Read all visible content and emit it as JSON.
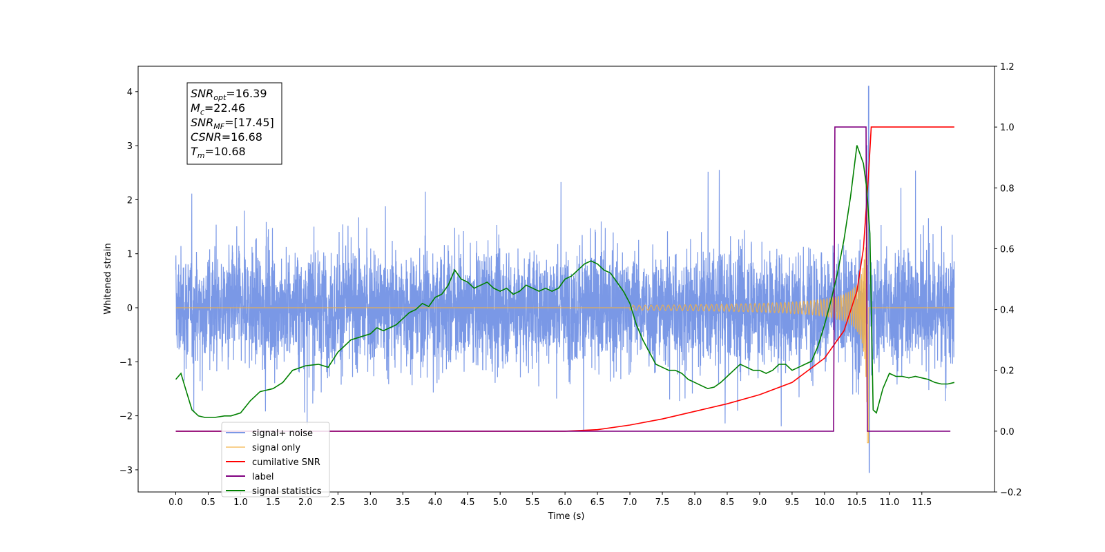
{
  "chart_data": {
    "type": "line",
    "xlabel": "Time (s)",
    "ylabel": "Whitened strain",
    "xlim": [
      -0.58,
      12.62
    ],
    "ylim": [
      -3.41,
      4.47
    ],
    "y2lim": [
      -0.2,
      1.2
    ],
    "x_ticks": [
      "0.0",
      "0.5",
      "1.0",
      "1.5",
      "2.0",
      "2.5",
      "3.0",
      "3.5",
      "4.0",
      "4.5",
      "5.0",
      "5.5",
      "6.0",
      "6.5",
      "7.0",
      "7.5",
      "8.0",
      "8.5",
      "9.0",
      "9.5",
      "10.0",
      "10.5",
      "11.0",
      "11.5"
    ],
    "y_ticks": [
      "−3",
      "−2",
      "−1",
      "0",
      "1",
      "2",
      "3",
      "4"
    ],
    "y2_ticks": [
      "−0.2",
      "0.0",
      "0.2",
      "0.4",
      "0.6",
      "0.8",
      "1.0",
      "1.2"
    ],
    "annotation": {
      "lines": [
        {
          "base": "SNR",
          "sub": "opt",
          "value": "=16.39"
        },
        {
          "base": "M",
          "sub": "c",
          "value": "=22.46"
        },
        {
          "base": "SNR",
          "sub": "MF",
          "value": "=[17.45]"
        },
        {
          "base": "CSNR",
          "sub": "",
          "value": "=16.68"
        },
        {
          "base": "T",
          "sub": "m",
          "value": "=10.68"
        }
      ]
    },
    "legend_position": "lower-left",
    "series": [
      {
        "name": "signal+ noise",
        "color": "#6b8de3",
        "axis": "left",
        "description_values": {
          "x_range": [
            0.0,
            12.0
          ],
          "noise_sigma": 0.75,
          "max": 4.1,
          "min": -3.05
        }
      },
      {
        "name": "signal only",
        "color": "#f5b041",
        "axis": "left",
        "chirp": {
          "start": 7.0,
          "peak_time": 10.68,
          "peak_amplitude": 2.3,
          "min": -2.5
        }
      },
      {
        "name": "cumilative SNR",
        "color": "#ff0000",
        "axis": "right",
        "x": [
          0.0,
          5.5,
          6.0,
          6.5,
          7.0,
          7.5,
          8.0,
          8.5,
          9.0,
          9.5,
          10.0,
          10.3,
          10.5,
          10.6,
          10.68,
          10.72,
          12.0
        ],
        "y": [
          0.0,
          0.0,
          0.0,
          0.005,
          0.02,
          0.04,
          0.065,
          0.09,
          0.12,
          0.16,
          0.24,
          0.33,
          0.46,
          0.6,
          0.85,
          1.0,
          1.0
        ]
      },
      {
        "name": "label",
        "color": "#800080",
        "axis": "right",
        "x": [
          0.0,
          10.14,
          10.16,
          10.64,
          10.66,
          11.94
        ],
        "y": [
          0.0,
          0.0,
          1.0,
          1.0,
          0.0,
          0.0
        ]
      },
      {
        "name": "signal statistics",
        "color": "#008000",
        "axis": "right",
        "x": [
          0.0,
          0.08,
          0.15,
          0.25,
          0.35,
          0.45,
          0.6,
          0.75,
          0.85,
          1.0,
          1.15,
          1.3,
          1.5,
          1.65,
          1.8,
          2.0,
          2.2,
          2.35,
          2.5,
          2.6,
          2.7,
          2.85,
          3.0,
          3.1,
          3.2,
          3.3,
          3.4,
          3.5,
          3.6,
          3.7,
          3.8,
          3.9,
          4.0,
          4.1,
          4.2,
          4.3,
          4.4,
          4.5,
          4.6,
          4.7,
          4.8,
          4.9,
          5.0,
          5.1,
          5.2,
          5.3,
          5.4,
          5.5,
          5.6,
          5.7,
          5.8,
          5.9,
          6.0,
          6.1,
          6.2,
          6.3,
          6.4,
          6.5,
          6.6,
          6.7,
          6.8,
          6.9,
          7.0,
          7.1,
          7.2,
          7.3,
          7.4,
          7.5,
          7.6,
          7.7,
          7.8,
          7.9,
          8.0,
          8.1,
          8.2,
          8.3,
          8.4,
          8.5,
          8.6,
          8.7,
          8.8,
          8.9,
          9.0,
          9.1,
          9.2,
          9.3,
          9.4,
          9.5,
          9.6,
          9.7,
          9.8,
          9.9,
          10.0,
          10.1,
          10.2,
          10.3,
          10.4,
          10.5,
          10.6,
          10.65,
          10.7,
          10.75,
          10.8,
          10.9,
          11.0,
          11.1,
          11.2,
          11.3,
          11.4,
          11.5,
          11.6,
          11.7,
          11.8,
          11.9,
          12.0
        ],
        "y": [
          0.17,
          0.19,
          0.14,
          0.07,
          0.05,
          0.045,
          0.045,
          0.05,
          0.05,
          0.06,
          0.1,
          0.13,
          0.14,
          0.16,
          0.2,
          0.215,
          0.22,
          0.21,
          0.26,
          0.28,
          0.3,
          0.31,
          0.32,
          0.34,
          0.33,
          0.34,
          0.35,
          0.37,
          0.39,
          0.4,
          0.42,
          0.41,
          0.44,
          0.45,
          0.48,
          0.53,
          0.5,
          0.49,
          0.47,
          0.48,
          0.49,
          0.47,
          0.46,
          0.47,
          0.45,
          0.46,
          0.48,
          0.47,
          0.46,
          0.47,
          0.46,
          0.47,
          0.5,
          0.51,
          0.53,
          0.55,
          0.56,
          0.55,
          0.53,
          0.52,
          0.49,
          0.46,
          0.42,
          0.35,
          0.3,
          0.26,
          0.22,
          0.21,
          0.2,
          0.2,
          0.19,
          0.17,
          0.16,
          0.15,
          0.14,
          0.145,
          0.16,
          0.18,
          0.2,
          0.22,
          0.21,
          0.2,
          0.2,
          0.19,
          0.2,
          0.22,
          0.22,
          0.2,
          0.21,
          0.22,
          0.23,
          0.28,
          0.35,
          0.43,
          0.52,
          0.63,
          0.77,
          0.94,
          0.88,
          0.8,
          0.65,
          0.07,
          0.06,
          0.14,
          0.19,
          0.18,
          0.18,
          0.175,
          0.18,
          0.175,
          0.17,
          0.16,
          0.155,
          0.155,
          0.16
        ]
      }
    ]
  }
}
